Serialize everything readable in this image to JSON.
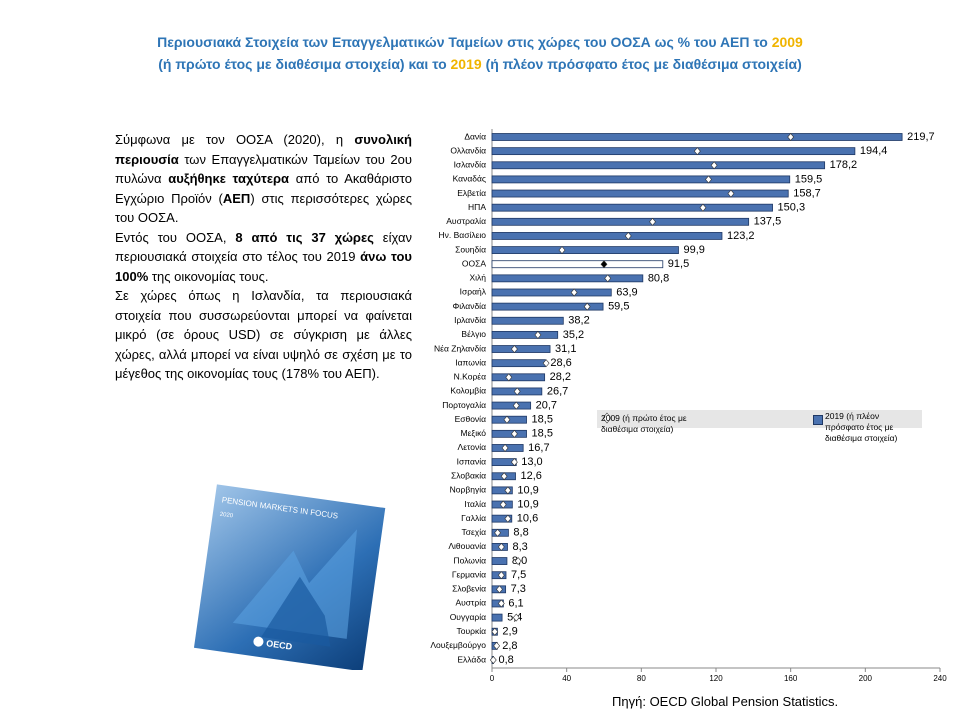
{
  "title": {
    "line1": "Περιουσιακά  Στοιχεία των Επαγγελματικών Ταμείων στις χώρες του ΟΟΣΑ ως % του ΑΕΠ το",
    "year1": "2009",
    "line2a": "(ή πρώτο έτος με διαθέσιμα στοιχεία) και το",
    "year2": "2019",
    "line2b": "(ή πλέον πρόσφατο έτος με διαθέσιμα στοιχεία)"
  },
  "paragraphs": [
    [
      {
        "text": "Σύμφωνα με τον ΟΟΣΑ (2020), η "
      },
      {
        "text": "συνολική περιουσία",
        "bold": true
      },
      {
        "text": " των Επαγγελματικών Ταμείων του 2ου πυλώνα "
      },
      {
        "text": "αυξήθηκε ταχύτερα",
        "bold": true
      },
      {
        "text": " από το Ακαθάριστο Εγχώριο Προϊόν ("
      },
      {
        "text": "ΑΕΠ",
        "bold": true
      },
      {
        "text": ") στις περισσότερες χώρες του ΟΟΣΑ."
      }
    ],
    [
      {
        "text": "Εντός του ΟΟΣΑ, "
      },
      {
        "text": "8 από τις 37 χώρες",
        "bold": true
      },
      {
        "text": " είχαν περιουσιακά στοιχεία στο τέλος του 2019 "
      },
      {
        "text": "άνω του 100%",
        "bold": true
      },
      {
        "text": " της οικονομίας τους."
      }
    ],
    [
      {
        "text": "Σε χώρες όπως η Ισλανδία, τα περιουσιακά στοιχεία που συσσωρεύονται μπορεί να φαίνεται μικρό (σε όρους USD) σε σύγκριση με άλλες χώρες, αλλά μπορεί να είναι υψηλό σε σχέση με το μέγεθος της οικονομίας τους (178% του ΑΕΠ)."
      }
    ]
  ],
  "cover": {
    "title": "PENSION MARKETS IN FOCUS",
    "year": "2020",
    "publisher": "OECD"
  },
  "source": "Πηγή: OECD Global Pension Statistics.",
  "chart_data": {
    "type": "hbar",
    "categories": [
      "Δανία",
      "Ολλανδία",
      "Ισλανδία",
      "Καναδάς",
      "Ελβετία",
      "ΗΠΑ",
      "Αυστραλία",
      "Ην. Βασίλειο",
      "Σουηδία",
      "ΟΟΣΑ",
      "Χιλή",
      "Ισραήλ",
      "Φιλανδία",
      "Ιρλανδία",
      "Βέλγιο",
      "Νέα Ζηλανδία",
      "Ιαπωνία",
      "Ν.Κορέα",
      "Κολομβία",
      "Πορτογαλία",
      "Εσθονία",
      "Μεξικό",
      "Λετονία",
      "Ισπανία",
      "Σλοβακία",
      "Νορβηγία",
      "Ιταλία",
      "Γαλλία",
      "Τσεχία",
      "Λιθουανία",
      "Πολωνία",
      "Γερμανία",
      "Σλοβενία",
      "Αυστρία",
      "Ουγγαρία",
      "Τουρκία",
      "Λουξεμβούργο",
      "Ελλάδα"
    ],
    "series": [
      {
        "name": "2009 (ή πρώτο έτος με διαθέσιμα στοιχεία)",
        "color": "#ffffff",
        "highlight_color": "#000000",
        "values": [
          160,
          110,
          119,
          116,
          128,
          113,
          86,
          73,
          37.5,
          60,
          62,
          44,
          51,
          null,
          24.6,
          12,
          29,
          9,
          13.5,
          13,
          8,
          12,
          7,
          12,
          6.5,
          8.5,
          6,
          8.5,
          3,
          5,
          14,
          5,
          4,
          5,
          13,
          1.5,
          2.5,
          0.7
        ]
      },
      {
        "name": "2019 (ή πλέον πρόσφατο έτος με διαθέσιμα στοιχεία)",
        "color": "#4a72b0",
        "highlight_color": "#ffffff",
        "values": [
          219.7,
          194.4,
          178.2,
          159.5,
          158.7,
          150.3,
          137.5,
          123.2,
          99.9,
          91.5,
          80.8,
          63.9,
          59.5,
          38.2,
          35.2,
          31.1,
          28.6,
          28.2,
          26.7,
          20.7,
          18.5,
          18.5,
          16.7,
          13.0,
          12.6,
          10.9,
          10.9,
          10.6,
          8.8,
          8.3,
          8.0,
          7.5,
          7.3,
          6.1,
          5.4,
          2.9,
          2.8,
          0.8
        ],
        "value_labels": [
          "219,7",
          "194,4",
          "178,2",
          "159,5",
          "158,7",
          "150,3",
          "137,5",
          "123,2",
          "99,9",
          "91,5",
          "80,8",
          "63,9",
          "59,5",
          "38,2",
          "35,2",
          "31,1",
          "28,6",
          "28,2",
          "26,7",
          "20,7",
          "18,5",
          "18,5",
          "16,7",
          "13,0",
          "12,6",
          "10,9",
          "10,9",
          "10,6",
          "8,8",
          "8,3",
          "8,0",
          "7,5",
          "7,3",
          "6,1",
          "5,4",
          "2,9",
          "2,8",
          "0,8"
        ]
      }
    ],
    "highlight_index": 9,
    "xlim": [
      0,
      240
    ],
    "xticks": [
      0,
      40,
      80,
      120,
      160,
      200,
      240
    ]
  }
}
